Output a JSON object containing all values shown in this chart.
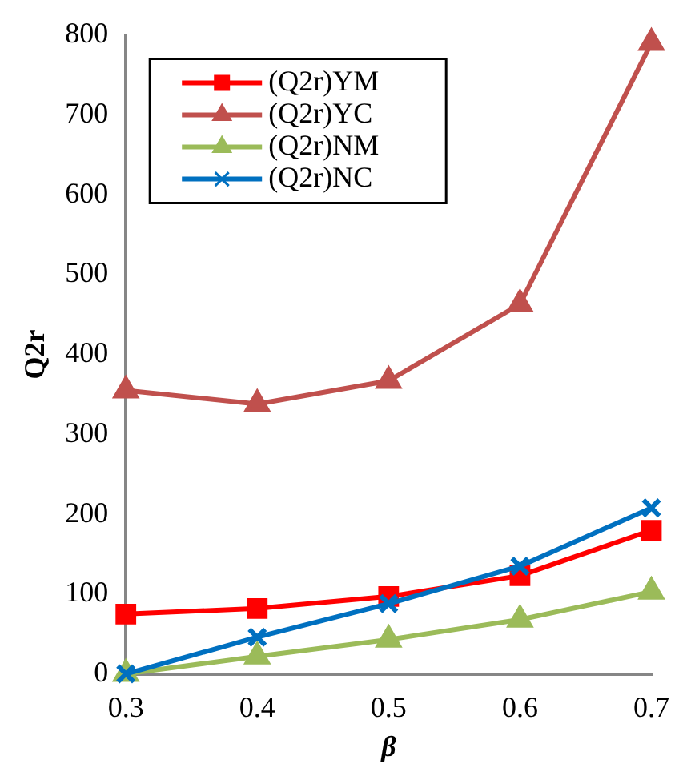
{
  "chart_data": {
    "type": "line",
    "xlabel": "β",
    "ylabel": "Q2r",
    "categories": [
      "0.3",
      "0.4",
      "0.5",
      "0.6",
      "0.7"
    ],
    "series": [
      {
        "name": "(Q2r)YM",
        "color": "#ff0000",
        "marker": "square",
        "values": [
          75,
          82,
          97,
          123,
          180
        ]
      },
      {
        "name": "(Q2r)YC",
        "color": "#c0504d",
        "marker": "triangle",
        "values": [
          355,
          338,
          367,
          463,
          790
        ]
      },
      {
        "name": "(Q2r)NM",
        "color": "#9bbb59",
        "marker": "triangle",
        "values": [
          0,
          22,
          43,
          68,
          103
        ]
      },
      {
        "name": "(Q2r)NC",
        "color": "#0070c0",
        "marker": "cross",
        "values": [
          0,
          46,
          88,
          135,
          208
        ]
      }
    ],
    "ylim": [
      0,
      800
    ],
    "yticks": [
      0,
      100,
      200,
      300,
      400,
      500,
      600,
      700,
      800
    ],
    "grid": false,
    "legend": "top left",
    "line_style": "solid"
  }
}
